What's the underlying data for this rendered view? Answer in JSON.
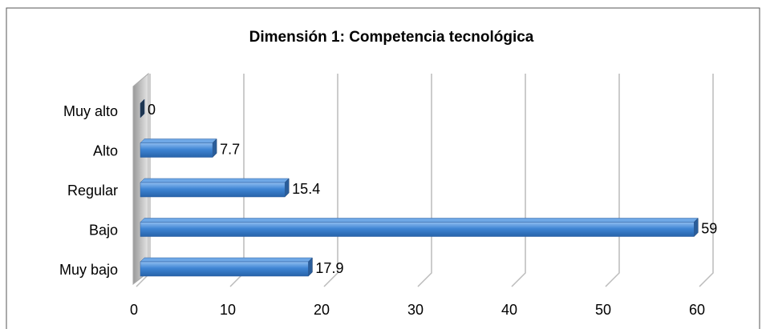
{
  "chart_data": {
    "type": "bar",
    "orientation": "horizontal",
    "title": "Dimensión 1: Competencia tecnológica",
    "categories": [
      "Muy alto",
      "Alto",
      "Regular",
      "Bajo",
      "Muy bajo"
    ],
    "values": [
      0,
      7.7,
      15.4,
      59,
      17.9
    ],
    "color": "#3f85d4",
    "xlim": [
      0,
      60
    ],
    "xticks": [
      0,
      10,
      20,
      30,
      40,
      50,
      60
    ],
    "grid": true
  }
}
